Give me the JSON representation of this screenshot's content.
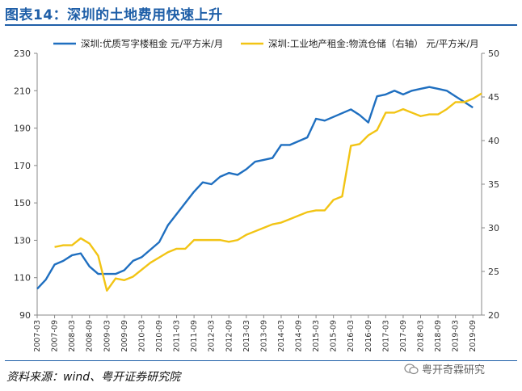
{
  "title": "图表14：深圳的土地费用快速上升",
  "source": "资料来源：wind、粤开证券研究院",
  "watermark": "粤开奇霖研究",
  "colors": {
    "series1": "#1f6fc0",
    "series2": "#f2c414",
    "accent": "#1f5fa8"
  },
  "chart_data": {
    "type": "line",
    "x": [
      "2007-03",
      "2007-06",
      "2007-09",
      "2007-12",
      "2008-03",
      "2008-06",
      "2008-09",
      "2008-12",
      "2009-03",
      "2009-06",
      "2009-09",
      "2009-12",
      "2010-03",
      "2010-06",
      "2010-09",
      "2010-12",
      "2011-03",
      "2011-06",
      "2011-09",
      "2011-12",
      "2012-03",
      "2012-06",
      "2012-09",
      "2012-12",
      "2013-03",
      "2013-06",
      "2013-09",
      "2013-12",
      "2014-03",
      "2014-06",
      "2014-09",
      "2014-12",
      "2015-03",
      "2015-06",
      "2015-09",
      "2015-12",
      "2016-03",
      "2016-06",
      "2016-09",
      "2016-12",
      "2017-03",
      "2017-06",
      "2017-09",
      "2017-12",
      "2018-03",
      "2018-06",
      "2018-09",
      "2018-12",
      "2019-03",
      "2019-06",
      "2019-09",
      "2019-12"
    ],
    "x_tick_labels": [
      "2007-03",
      "2007-09",
      "2008-03",
      "2008-09",
      "2009-03",
      "2009-09",
      "2010-03",
      "2010-09",
      "2011-03",
      "2011-09",
      "2012-03",
      "2012-09",
      "2013-03",
      "2013-09",
      "2014-03",
      "2014-09",
      "2015-03",
      "2015-09",
      "2016-03",
      "2016-09",
      "2017-03",
      "2017-09",
      "2018-03",
      "2018-09",
      "2019-03",
      "2019-09"
    ],
    "series": [
      {
        "name": "深圳:优质写字楼租金 元/平方米/月",
        "axis": "left",
        "values": [
          104,
          109,
          117,
          119,
          122,
          123,
          116,
          112,
          112,
          112,
          114,
          119,
          121,
          125,
          129,
          138,
          144,
          150,
          156,
          161,
          160,
          164,
          166,
          165,
          168,
          172,
          173,
          174,
          181,
          181,
          183,
          185,
          195,
          194,
          196,
          198,
          200,
          197,
          193,
          207,
          208,
          210,
          208,
          210,
          211,
          212,
          211,
          210,
          207,
          204,
          201,
          null
        ]
      },
      {
        "name": "深圳:工业地产租金:物流仓储（右轴） 元/平方米/月",
        "axis": "right",
        "values": [
          null,
          null,
          27.8,
          28.0,
          28.0,
          28.8,
          28.2,
          26.8,
          22.8,
          24.2,
          24.0,
          24.4,
          25.2,
          26.0,
          26.6,
          27.2,
          27.6,
          27.6,
          28.6,
          28.6,
          28.6,
          28.6,
          28.4,
          28.6,
          29.2,
          29.6,
          30.0,
          30.4,
          30.6,
          31.0,
          31.4,
          31.8,
          32.0,
          32.0,
          33.2,
          33.6,
          39.4,
          39.6,
          40.6,
          41.2,
          43.2,
          43.2,
          43.6,
          43.2,
          42.8,
          43.0,
          43.0,
          43.6,
          44.4,
          44.4,
          44.8,
          45.4
        ]
      }
    ],
    "y_left": {
      "min": 90,
      "max": 230,
      "ticks": [
        90,
        110,
        130,
        150,
        170,
        190,
        210,
        230
      ]
    },
    "y_right": {
      "min": 20,
      "max": 50,
      "ticks": [
        20,
        25,
        30,
        35,
        40,
        45,
        50
      ]
    },
    "legend_position": "top",
    "grid": false
  }
}
